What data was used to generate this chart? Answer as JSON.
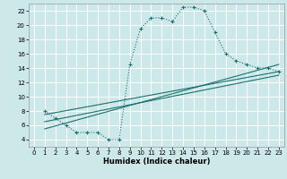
{
  "xlabel": "Humidex (Indice chaleur)",
  "ylabel": "",
  "bg_color": "#cde8e8",
  "grid_color": "#ffffff",
  "line_color": "#1a7070",
  "xlim": [
    -0.5,
    23.5
  ],
  "ylim": [
    3,
    23
  ],
  "xticks": [
    0,
    1,
    2,
    3,
    4,
    5,
    6,
    7,
    8,
    9,
    10,
    11,
    12,
    13,
    14,
    15,
    16,
    17,
    18,
    19,
    20,
    21,
    22,
    23
  ],
  "yticks": [
    4,
    6,
    8,
    10,
    12,
    14,
    16,
    18,
    20,
    22
  ],
  "main_x": [
    1,
    2,
    3,
    4,
    5,
    6,
    7,
    8,
    9,
    10,
    11,
    12,
    13,
    14,
    15,
    16,
    17,
    18,
    19,
    20,
    21,
    22,
    23
  ],
  "main_y": [
    8,
    7,
    6,
    5,
    5,
    5,
    4,
    4,
    14.5,
    19.5,
    21,
    21,
    20.5,
    22.5,
    22.5,
    22,
    19,
    16,
    15,
    14.5,
    14,
    14,
    13.5
  ],
  "line1_x": [
    1,
    23
  ],
  "line1_y": [
    7.5,
    13.5
  ],
  "line2_x": [
    1,
    23
  ],
  "line2_y": [
    6.5,
    13.0
  ],
  "line3_x": [
    1,
    23
  ],
  "line3_y": [
    5.5,
    14.5
  ]
}
